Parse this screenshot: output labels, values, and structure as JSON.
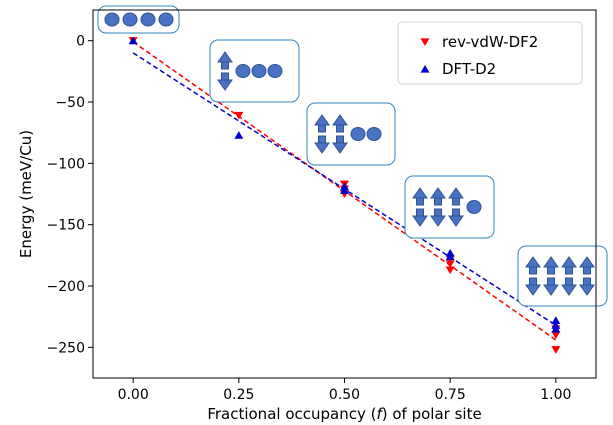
{
  "chart_data": {
    "type": "scatter",
    "title": "",
    "xlabel_before": "Fractional occupancy (",
    "xlabel_var": "f",
    "xlabel_after": ") of polar site",
    "ylabel": "Energy (meV/Cu)",
    "xlim": [
      -0.095,
      1.095
    ],
    "ylim": [
      -275,
      25
    ],
    "xticks": [
      0.0,
      0.25,
      0.5,
      0.75,
      1.0
    ],
    "xtick_labels": [
      "0.00",
      "0.25",
      "0.50",
      "0.75",
      "1.00"
    ],
    "yticks": [
      0,
      -50,
      -100,
      -150,
      -200,
      -250
    ],
    "ytick_labels": [
      "0",
      "−50",
      "−100",
      "−150",
      "−200",
      "−250"
    ],
    "grid": false,
    "legend_position": "top-right",
    "series": [
      {
        "name": "rev-vdW-DF2",
        "marker": "triangle-down",
        "color": "#ff0000",
        "x": [
          0.0,
          0.25,
          0.5,
          0.5,
          0.5,
          0.75,
          0.75,
          0.75,
          1.0,
          1.0,
          1.0
        ],
        "y": [
          0,
          -61,
          -117,
          -121,
          -125,
          -178,
          -182,
          -187,
          -235,
          -240,
          -252
        ],
        "fit": {
          "x": [
            0.0,
            1.0
          ],
          "y": [
            -1,
            -244
          ]
        }
      },
      {
        "name": "DFT-D2",
        "marker": "triangle-up",
        "color": "#0000cc",
        "x": [
          0.0,
          0.25,
          0.5,
          0.5,
          0.75,
          0.75,
          1.0,
          1.0,
          1.0
        ],
        "y": [
          0,
          -77,
          -119,
          -122,
          -173,
          -176,
          -228,
          -232,
          -235
        ],
        "fit": {
          "x": [
            0.0,
            1.0
          ],
          "y": [
            -10,
            -232
          ]
        }
      }
    ],
    "insets": [
      {
        "id": "occupancy-0",
        "dimers": 0,
        "monomers": 4
      },
      {
        "id": "occupancy-025",
        "dimers": 1,
        "monomers": 3
      },
      {
        "id": "occupancy-05",
        "dimers": 2,
        "monomers": 2
      },
      {
        "id": "occupancy-075",
        "dimers": 3,
        "monomers": 1
      },
      {
        "id": "occupancy-1",
        "dimers": 4,
        "monomers": 0
      }
    ],
    "inset_colors": {
      "fill": "#4a72c4",
      "stroke": "#2f528f",
      "border": "#2e86c1"
    }
  }
}
